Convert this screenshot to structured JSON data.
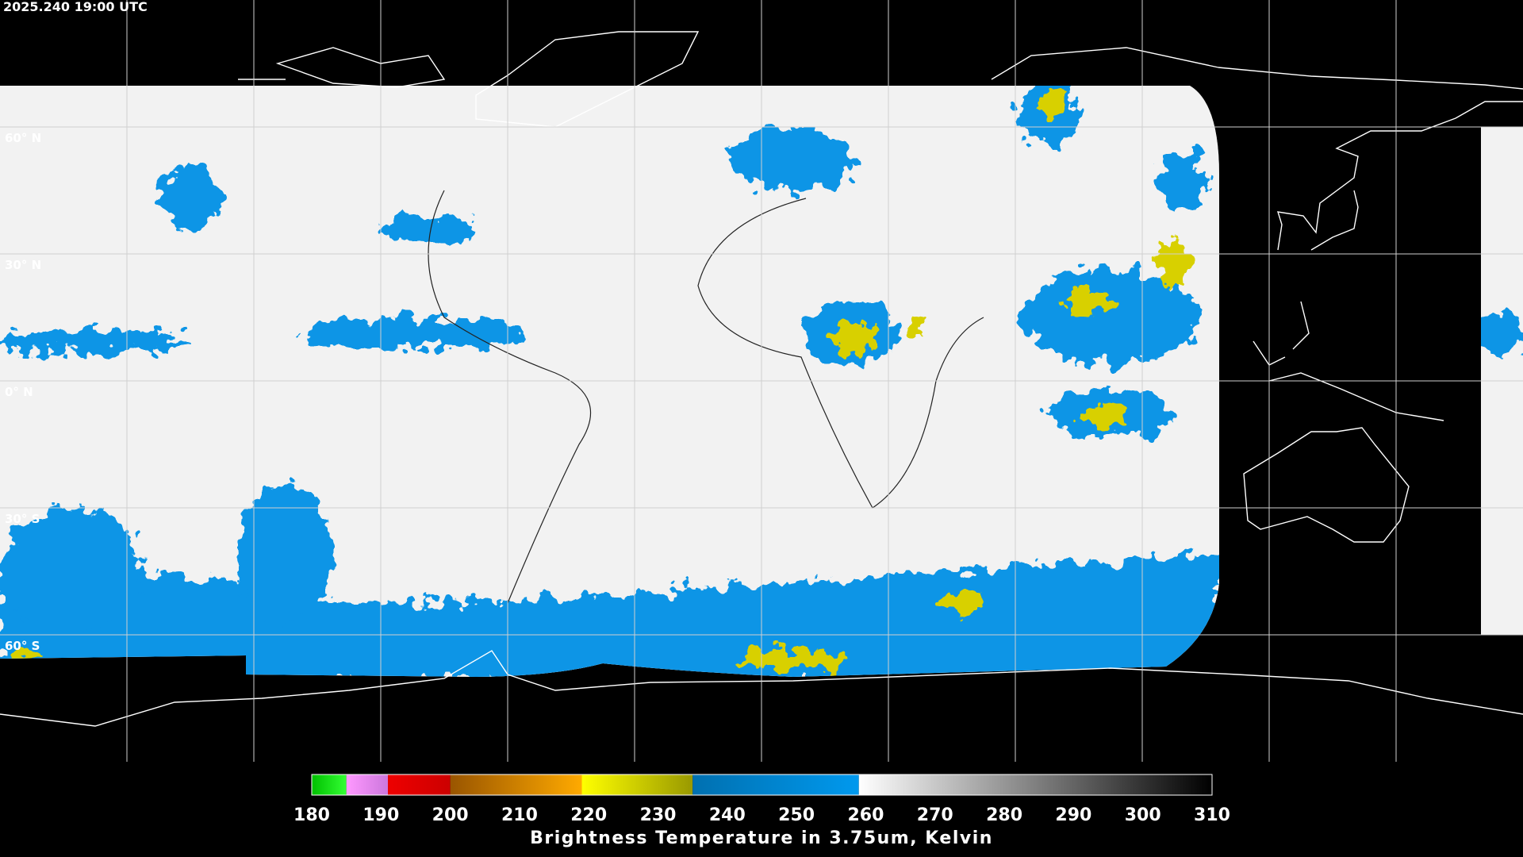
{
  "map": {
    "timestamp": "2025.240 19:00 UTC",
    "latitude_labels": [
      "60° N",
      "30° N",
      "0° N",
      "30° S",
      "60° S"
    ]
  },
  "colorbar": {
    "title": "Brightness Temperature in 3.75um, Kelvin",
    "range": [
      180,
      310
    ],
    "ticks": [
      180,
      190,
      200,
      210,
      220,
      230,
      240,
      250,
      260,
      270,
      280,
      290,
      300,
      310
    ],
    "segments": [
      {
        "from": 180,
        "to": 185,
        "colors": [
          "#00c000",
          "#33ff33"
        ]
      },
      {
        "from": 185,
        "to": 191,
        "colors": [
          "#ff99ff",
          "#cc77dd"
        ]
      },
      {
        "from": 191,
        "to": 200,
        "colors": [
          "#ee0000",
          "#cc0000"
        ]
      },
      {
        "from": 200,
        "to": 219,
        "colors": [
          "#995500",
          "#ffaa00"
        ]
      },
      {
        "from": 219,
        "to": 235,
        "colors": [
          "#ffff00",
          "#999900"
        ]
      },
      {
        "from": 235,
        "to": 259,
        "colors": [
          "#0070b0",
          "#0099ee"
        ]
      },
      {
        "from": 259,
        "to": 310,
        "colors": [
          "#ffffff",
          "#000000"
        ]
      }
    ]
  }
}
